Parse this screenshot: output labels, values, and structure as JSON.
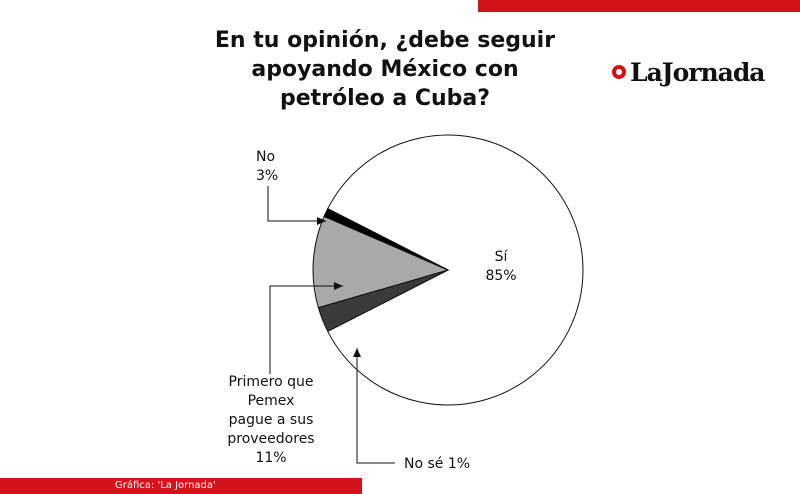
{
  "title": "En tu opinión, ¿debe seguir apoyando México con petróleo a Cuba?",
  "logo_text": "LaJornada",
  "credit": "Gráfica: 'La Jornada'",
  "colors": {
    "accent": "#d2131a",
    "si": "#ffffff",
    "no": "#3a3a3a",
    "primero": "#a9a9a9",
    "nose": "#000000"
  },
  "chart_data": {
    "type": "pie",
    "title": "En tu opinión, ¿debe seguir apoyando México con petróleo a Cuba?",
    "slices": [
      {
        "label": "Sí",
        "value": 85,
        "value_label": "85%"
      },
      {
        "label": "No",
        "value": 3,
        "value_label": "3%"
      },
      {
        "label": "Primero que Pemex pague a sus proveedores",
        "value": 11,
        "value_label": "11%"
      },
      {
        "label": "No sé",
        "value": 1,
        "value_label": "1%"
      }
    ]
  }
}
